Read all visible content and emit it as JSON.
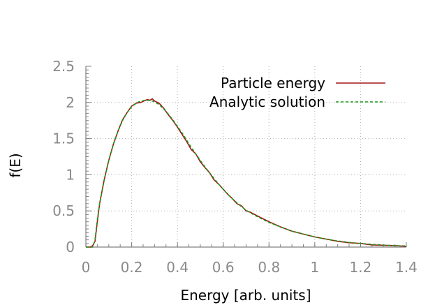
{
  "chart_data": {
    "type": "line",
    "title": "",
    "xlabel": "Energy [arb. units]",
    "ylabel": "f(E)",
    "xlim": [
      0,
      1.4
    ],
    "ylim": [
      0,
      2.5
    ],
    "grid": true,
    "legend_position": "top-right",
    "x_ticks": [
      "0",
      "0.2",
      "0.4",
      "0.6",
      "0.8",
      "1",
      "1.2",
      "1.4"
    ],
    "y_ticks": [
      "0",
      "0.5",
      "1",
      "1.5",
      "2",
      "2.5"
    ],
    "series": [
      {
        "name": "Particle energy",
        "color": "#a31515",
        "style": "solid",
        "x": [
          0.0,
          0.02,
          0.03,
          0.04,
          0.05,
          0.06,
          0.08,
          0.1,
          0.12,
          0.14,
          0.16,
          0.18,
          0.2,
          0.22,
          0.24,
          0.26,
          0.27,
          0.28,
          0.29,
          0.3,
          0.32,
          0.34,
          0.36,
          0.38,
          0.4,
          0.42,
          0.44,
          0.46,
          0.48,
          0.5,
          0.52,
          0.54,
          0.56,
          0.58,
          0.6,
          0.62,
          0.64,
          0.66,
          0.68,
          0.7,
          0.72,
          0.75,
          0.8,
          0.85,
          0.9,
          0.95,
          1.0,
          1.05,
          1.1,
          1.15,
          1.2,
          1.25,
          1.3,
          1.35,
          1.4
        ],
        "values": [
          0.0,
          0.0,
          0.02,
          0.08,
          0.35,
          0.6,
          0.93,
          1.2,
          1.42,
          1.6,
          1.76,
          1.86,
          1.95,
          1.99,
          2.0,
          2.03,
          2.04,
          2.03,
          2.05,
          2.02,
          1.99,
          1.92,
          1.83,
          1.75,
          1.66,
          1.56,
          1.46,
          1.35,
          1.29,
          1.18,
          1.1,
          1.03,
          0.93,
          0.87,
          0.8,
          0.73,
          0.67,
          0.6,
          0.57,
          0.5,
          0.48,
          0.43,
          0.35,
          0.28,
          0.22,
          0.18,
          0.14,
          0.11,
          0.08,
          0.06,
          0.05,
          0.03,
          0.025,
          0.02,
          0.01
        ]
      },
      {
        "name": "Analytic solution",
        "color": "#1a9a1a",
        "style": "dashed",
        "x": [
          0.0,
          0.03,
          0.04,
          0.05,
          0.06,
          0.08,
          0.1,
          0.12,
          0.14,
          0.16,
          0.18,
          0.2,
          0.22,
          0.24,
          0.26,
          0.28,
          0.3,
          0.32,
          0.34,
          0.36,
          0.38,
          0.4,
          0.42,
          0.44,
          0.46,
          0.48,
          0.5,
          0.52,
          0.54,
          0.56,
          0.58,
          0.6,
          0.62,
          0.64,
          0.66,
          0.68,
          0.7,
          0.72,
          0.75,
          0.8,
          0.85,
          0.9,
          0.95,
          1.0,
          1.05,
          1.1,
          1.15,
          1.2,
          1.25,
          1.3,
          1.35,
          1.4
        ],
        "values": [
          0.0,
          0.0,
          0.1,
          0.38,
          0.6,
          0.92,
          1.2,
          1.42,
          1.6,
          1.75,
          1.86,
          1.94,
          1.99,
          2.02,
          2.03,
          2.03,
          2.01,
          1.97,
          1.91,
          1.84,
          1.76,
          1.67,
          1.58,
          1.48,
          1.38,
          1.29,
          1.2,
          1.11,
          1.03,
          0.95,
          0.87,
          0.8,
          0.73,
          0.67,
          0.61,
          0.56,
          0.51,
          0.47,
          0.42,
          0.34,
          0.28,
          0.22,
          0.18,
          0.14,
          0.11,
          0.085,
          0.065,
          0.05,
          0.038,
          0.028,
          0.02,
          0.015
        ]
      }
    ]
  }
}
